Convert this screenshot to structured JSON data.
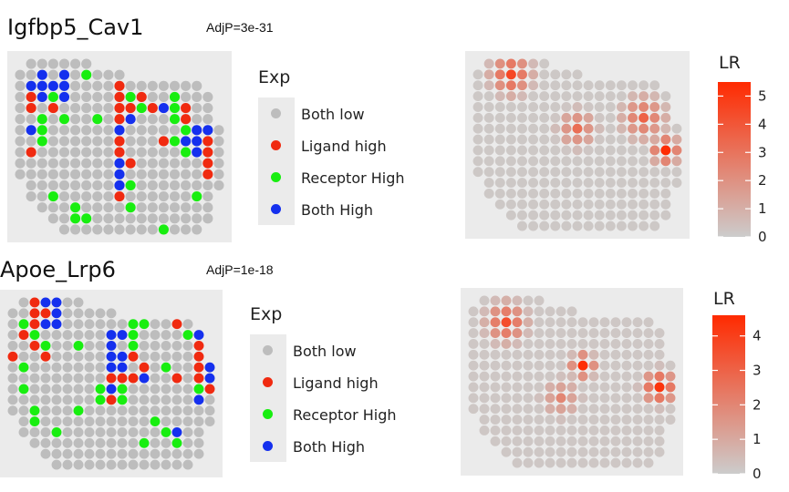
{
  "colors": {
    "Both low": "#bdbdbd",
    "Ligand high": "#f02a10",
    "Receptor High": "#18ee10",
    "Both High": "#1530ee",
    "lr_low": "#cccccc",
    "lr_high": "#ff2a00",
    "panel_bg": "#ebebeb"
  },
  "legend": {
    "title": "Exp",
    "items": [
      "Both low",
      "Ligand high",
      "Receptor High",
      "Both High"
    ]
  },
  "colorbar_title": "LR",
  "chart_data": [
    {
      "type": "scatter",
      "title": "Igfbp5_Cav1",
      "annotation": "AdjP=3e-31",
      "categories": [
        "Both low",
        "Ligand high",
        "Receptor High",
        "Both High"
      ],
      "highlights": [
        {
          "row": 1,
          "col": 2,
          "cat": "Both High"
        },
        {
          "row": 1,
          "col": 4,
          "cat": "Both High"
        },
        {
          "row": 1,
          "col": 6,
          "cat": "Receptor High"
        },
        {
          "row": 2,
          "col": 1,
          "cat": "Both High"
        },
        {
          "row": 2,
          "col": 2,
          "cat": "Both High"
        },
        {
          "row": 2,
          "col": 3,
          "cat": "Both High"
        },
        {
          "row": 2,
          "col": 4,
          "cat": "Both High"
        },
        {
          "row": 2,
          "col": 9,
          "cat": "Ligand high"
        },
        {
          "row": 3,
          "col": 1,
          "cat": "Ligand high"
        },
        {
          "row": 3,
          "col": 2,
          "cat": "Both High"
        },
        {
          "row": 3,
          "col": 3,
          "cat": "Receptor High"
        },
        {
          "row": 3,
          "col": 4,
          "cat": "Both High"
        },
        {
          "row": 3,
          "col": 9,
          "cat": "Ligand high"
        },
        {
          "row": 3,
          "col": 10,
          "cat": "Receptor High"
        },
        {
          "row": 3,
          "col": 11,
          "cat": "Ligand high"
        },
        {
          "row": 3,
          "col": 14,
          "cat": "Receptor High"
        },
        {
          "row": 4,
          "col": 1,
          "cat": "Ligand high"
        },
        {
          "row": 4,
          "col": 3,
          "cat": "Ligand high"
        },
        {
          "row": 4,
          "col": 9,
          "cat": "Ligand high"
        },
        {
          "row": 4,
          "col": 10,
          "cat": "Ligand high"
        },
        {
          "row": 4,
          "col": 11,
          "cat": "Receptor High"
        },
        {
          "row": 4,
          "col": 12,
          "cat": "Ligand high"
        },
        {
          "row": 4,
          "col": 13,
          "cat": "Both High"
        },
        {
          "row": 4,
          "col": 14,
          "cat": "Receptor High"
        },
        {
          "row": 4,
          "col": 15,
          "cat": "Ligand high"
        },
        {
          "row": 5,
          "col": 2,
          "cat": "Receptor High"
        },
        {
          "row": 5,
          "col": 4,
          "cat": "Receptor High"
        },
        {
          "row": 5,
          "col": 7,
          "cat": "Receptor High"
        },
        {
          "row": 5,
          "col": 9,
          "cat": "Ligand high"
        },
        {
          "row": 5,
          "col": 10,
          "cat": "Both High"
        },
        {
          "row": 5,
          "col": 14,
          "cat": "Receptor High"
        },
        {
          "row": 5,
          "col": 15,
          "cat": "Ligand high"
        },
        {
          "row": 6,
          "col": 1,
          "cat": "Both High"
        },
        {
          "row": 6,
          "col": 2,
          "cat": "Receptor High"
        },
        {
          "row": 6,
          "col": 9,
          "cat": "Both High"
        },
        {
          "row": 6,
          "col": 15,
          "cat": "Receptor High"
        },
        {
          "row": 6,
          "col": 16,
          "cat": "Both High"
        },
        {
          "row": 6,
          "col": 17,
          "cat": "Both High"
        },
        {
          "row": 7,
          "col": 2,
          "cat": "Receptor High"
        },
        {
          "row": 7,
          "col": 9,
          "cat": "Ligand high"
        },
        {
          "row": 7,
          "col": 13,
          "cat": "Ligand high"
        },
        {
          "row": 7,
          "col": 14,
          "cat": "Receptor High"
        },
        {
          "row": 7,
          "col": 15,
          "cat": "Both High"
        },
        {
          "row": 7,
          "col": 16,
          "cat": "Both High"
        },
        {
          "row": 7,
          "col": 17,
          "cat": "Ligand high"
        },
        {
          "row": 8,
          "col": 1,
          "cat": "Ligand high"
        },
        {
          "row": 8,
          "col": 9,
          "cat": "Ligand high"
        },
        {
          "row": 8,
          "col": 15,
          "cat": "Receptor High"
        },
        {
          "row": 8,
          "col": 16,
          "cat": "Both High"
        },
        {
          "row": 8,
          "col": 17,
          "cat": "Ligand high"
        },
        {
          "row": 9,
          "col": 9,
          "cat": "Both High"
        },
        {
          "row": 9,
          "col": 10,
          "cat": "Ligand high"
        },
        {
          "row": 9,
          "col": 17,
          "cat": "Ligand high"
        },
        {
          "row": 10,
          "col": 9,
          "cat": "Both High"
        },
        {
          "row": 10,
          "col": 17,
          "cat": "Ligand high"
        },
        {
          "row": 11,
          "col": 9,
          "cat": "Both High"
        },
        {
          "row": 11,
          "col": 10,
          "cat": "Receptor High"
        },
        {
          "row": 12,
          "col": 3,
          "cat": "Receptor High"
        },
        {
          "row": 12,
          "col": 9,
          "cat": "Ligand high"
        },
        {
          "row": 12,
          "col": 16,
          "cat": "Receptor High"
        },
        {
          "row": 13,
          "col": 5,
          "cat": "Receptor High"
        },
        {
          "row": 13,
          "col": 10,
          "cat": "Receptor High"
        },
        {
          "row": 14,
          "col": 5,
          "cat": "Receptor High"
        },
        {
          "row": 14,
          "col": 6,
          "cat": "Receptor High"
        },
        {
          "row": 15,
          "col": 13,
          "cat": "Receptor High"
        }
      ],
      "lr_range": [
        0,
        5.5
      ],
      "lr_ticks": [
        0,
        1,
        2,
        3,
        4,
        5
      ],
      "lr_hotspots": [
        {
          "row": 1,
          "col": 3,
          "value": 4.5,
          "radius": 2.6
        },
        {
          "row": 6,
          "col": 9,
          "value": 3.2,
          "radius": 2.4
        },
        {
          "row": 5,
          "col": 15,
          "value": 3.6,
          "radius": 2.8
        },
        {
          "row": 8,
          "col": 17,
          "value": 5.4,
          "radius": 1.8
        }
      ]
    },
    {
      "type": "scatter",
      "title": "Apoe_Lrp6",
      "annotation": "AdjP=1e-18",
      "categories": [
        "Both low",
        "Ligand high",
        "Receptor High",
        "Both High"
      ],
      "highlights": [
        {
          "row": 0,
          "col": 2,
          "cat": "Ligand high"
        },
        {
          "row": 0,
          "col": 3,
          "cat": "Both High"
        },
        {
          "row": 0,
          "col": 4,
          "cat": "Both High"
        },
        {
          "row": 1,
          "col": 2,
          "cat": "Ligand high"
        },
        {
          "row": 1,
          "col": 3,
          "cat": "Ligand high"
        },
        {
          "row": 1,
          "col": 4,
          "cat": "Both High"
        },
        {
          "row": 2,
          "col": 1,
          "cat": "Receptor High"
        },
        {
          "row": 2,
          "col": 2,
          "cat": "Ligand high"
        },
        {
          "row": 2,
          "col": 3,
          "cat": "Both High"
        },
        {
          "row": 2,
          "col": 4,
          "cat": "Both High"
        },
        {
          "row": 2,
          "col": 11,
          "cat": "Receptor High"
        },
        {
          "row": 2,
          "col": 12,
          "cat": "Receptor High"
        },
        {
          "row": 2,
          "col": 15,
          "cat": "Ligand high"
        },
        {
          "row": 3,
          "col": 1,
          "cat": "Ligand high"
        },
        {
          "row": 3,
          "col": 2,
          "cat": "Receptor High"
        },
        {
          "row": 3,
          "col": 9,
          "cat": "Both High"
        },
        {
          "row": 3,
          "col": 10,
          "cat": "Both High"
        },
        {
          "row": 3,
          "col": 11,
          "cat": "Receptor High"
        },
        {
          "row": 3,
          "col": 16,
          "cat": "Receptor High"
        },
        {
          "row": 3,
          "col": 17,
          "cat": "Both High"
        },
        {
          "row": 4,
          "col": 2,
          "cat": "Ligand high"
        },
        {
          "row": 4,
          "col": 3,
          "cat": "Receptor High"
        },
        {
          "row": 4,
          "col": 6,
          "cat": "Receptor High"
        },
        {
          "row": 4,
          "col": 9,
          "cat": "Both High"
        },
        {
          "row": 4,
          "col": 11,
          "cat": "Receptor High"
        },
        {
          "row": 4,
          "col": 17,
          "cat": "Ligand high"
        },
        {
          "row": 5,
          "col": 0,
          "cat": "Ligand high"
        },
        {
          "row": 5,
          "col": 3,
          "cat": "Ligand high"
        },
        {
          "row": 5,
          "col": 9,
          "cat": "Both High"
        },
        {
          "row": 5,
          "col": 10,
          "cat": "Both High"
        },
        {
          "row": 5,
          "col": 11,
          "cat": "Ligand high"
        },
        {
          "row": 5,
          "col": 17,
          "cat": "Ligand high"
        },
        {
          "row": 5,
          "col": 18,
          "cat": "Receptor High"
        },
        {
          "row": 6,
          "col": 1,
          "cat": "Receptor High"
        },
        {
          "row": 6,
          "col": 9,
          "cat": "Both High"
        },
        {
          "row": 6,
          "col": 10,
          "cat": "Both High"
        },
        {
          "row": 6,
          "col": 12,
          "cat": "Ligand high"
        },
        {
          "row": 6,
          "col": 14,
          "cat": "Receptor High"
        },
        {
          "row": 6,
          "col": 17,
          "cat": "Ligand high"
        },
        {
          "row": 6,
          "col": 18,
          "cat": "Both High"
        },
        {
          "row": 7,
          "col": 9,
          "cat": "Ligand high"
        },
        {
          "row": 7,
          "col": 10,
          "cat": "Ligand high"
        },
        {
          "row": 7,
          "col": 11,
          "cat": "Ligand high"
        },
        {
          "row": 7,
          "col": 12,
          "cat": "Both High"
        },
        {
          "row": 7,
          "col": 15,
          "cat": "Ligand high"
        },
        {
          "row": 7,
          "col": 17,
          "cat": "Ligand high"
        },
        {
          "row": 7,
          "col": 18,
          "cat": "Both High"
        },
        {
          "row": 8,
          "col": 1,
          "cat": "Receptor High"
        },
        {
          "row": 8,
          "col": 8,
          "cat": "Receptor High"
        },
        {
          "row": 8,
          "col": 9,
          "cat": "Both High"
        },
        {
          "row": 8,
          "col": 10,
          "cat": "Receptor High"
        },
        {
          "row": 8,
          "col": 17,
          "cat": "Receptor High"
        },
        {
          "row": 8,
          "col": 18,
          "cat": "Ligand high"
        },
        {
          "row": 9,
          "col": 8,
          "cat": "Receptor High"
        },
        {
          "row": 9,
          "col": 9,
          "cat": "Ligand high"
        },
        {
          "row": 9,
          "col": 10,
          "cat": "Receptor High"
        },
        {
          "row": 9,
          "col": 17,
          "cat": "Both High"
        },
        {
          "row": 10,
          "col": 2,
          "cat": "Receptor High"
        },
        {
          "row": 10,
          "col": 6,
          "cat": "Receptor High"
        },
        {
          "row": 11,
          "col": 2,
          "cat": "Receptor High"
        },
        {
          "row": 11,
          "col": 13,
          "cat": "Receptor High"
        },
        {
          "row": 12,
          "col": 4,
          "cat": "Receptor High"
        },
        {
          "row": 12,
          "col": 14,
          "cat": "Receptor High"
        },
        {
          "row": 12,
          "col": 15,
          "cat": "Both High"
        },
        {
          "row": 13,
          "col": 12,
          "cat": "Receptor High"
        },
        {
          "row": 13,
          "col": 15,
          "cat": "Receptor High"
        }
      ],
      "lr_range": [
        0,
        4.6
      ],
      "lr_ticks": [
        0,
        1,
        2,
        3,
        4
      ],
      "lr_hotspots": [
        {
          "row": 2,
          "col": 3,
          "value": 3.6,
          "radius": 2.6
        },
        {
          "row": 6,
          "col": 10,
          "value": 4.5,
          "radius": 1.6
        },
        {
          "row": 8,
          "col": 17,
          "value": 4.3,
          "radius": 2.2
        },
        {
          "row": 9,
          "col": 8,
          "value": 2.0,
          "radius": 2.4
        }
      ]
    }
  ]
}
